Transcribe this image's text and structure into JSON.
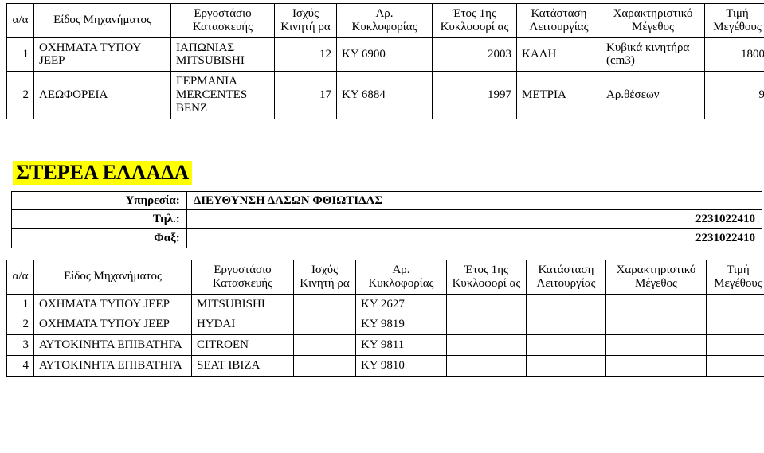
{
  "table1": {
    "headers": [
      "α/α",
      "Είδος Μηχανήματος",
      "Εργοστάσιο Κατασκευής",
      "Ισχύς Κινητή ρα",
      "Αρ. Κυκλοφορίας",
      "Έτος 1ης Κυκλοφορί ας",
      "Κατάσταση Λειτουργίας",
      "Χαρακτηριστικό Μέγεθος",
      "Τιμή Μεγέθους"
    ],
    "rows": [
      [
        "1",
        "ΟΧΗΜΑΤΑ ΤΥΠΟΥ JEEP",
        "ΙΑΠΩΝΙΑΣ MITSUBISHI",
        "12",
        "ΚΥ 6900",
        "2003",
        "ΚΑΛΗ",
        "Κυβικά κινητήρα (cm3)",
        "1800"
      ],
      [
        "2",
        "ΛΕΩΦΟΡΕΙΑ",
        "ΓΕΡΜΑΝΙΑ MERCENTES BENZ",
        "17",
        "ΚΥ 6884",
        "1997",
        "ΜΕΤΡΙΑ",
        "Αρ.θέσεων",
        "9"
      ]
    ]
  },
  "region": "ΣΤΕΡΕΑ ΕΛΛΑΔΑ",
  "service": {
    "service_label": "Υπηρεσία:",
    "service_value": "ΔΙΕΥΘΥΝΣΗ ΔΑΣΩΝ ΦΘΙΩΤΙΔΑΣ",
    "tel_label": "Τηλ.:",
    "tel_value": "2231022410",
    "fax_label": "Φαξ:",
    "fax_value": "2231022410"
  },
  "table2": {
    "headers": [
      "α/α",
      "Είδος Μηχανήματος",
      "Εργοστάσιο Κατασκευής",
      "Ισχύς Κινητή ρα",
      "Αρ. Κυκλοφορίας",
      "Έτος 1ης Κυκλοφορί ας",
      "Κατάσταση Λειτουργίας",
      "Χαρακτηριστικό Μέγεθος",
      "Τιμή Μεγέθους"
    ],
    "rows": [
      [
        "1",
        "ΟΧΗΜΑΤΑ ΤΥΠΟΥ JEEP",
        "MITSUBISHI",
        "",
        "ΚΥ 2627",
        "",
        "",
        "",
        ""
      ],
      [
        "2",
        "ΟΧΗΜΑΤΑ ΤΥΠΟΥ JEEP",
        "HYDAI",
        "",
        "ΚΥ 9819",
        "",
        "",
        "",
        ""
      ],
      [
        "3",
        "ΑΥΤΟΚΙΝΗΤΑ ΕΠΙΒΑΤΗΓΑ",
        "CITROEN",
        "",
        "ΚΥ 9811",
        "",
        "",
        "",
        ""
      ],
      [
        "4",
        "ΑΥΤΟΚΙΝΗΤΑ ΕΠΙΒΑΤΗΓΑ",
        "SEAT IBIZA",
        "",
        "ΚΥ 9810",
        "",
        "",
        "",
        ""
      ]
    ]
  }
}
